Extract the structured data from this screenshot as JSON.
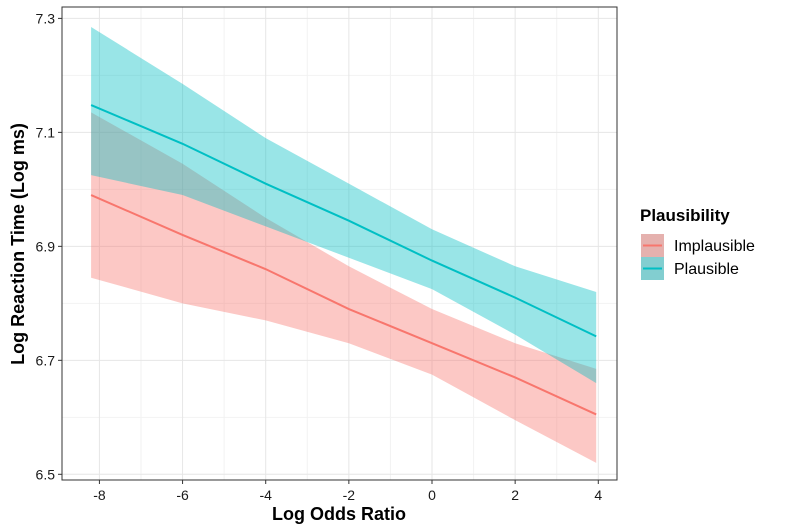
{
  "chart_data": {
    "type": "line",
    "title": "",
    "xlabel": "Log Odds Ratio",
    "ylabel": "Log Reaction Time (Log ms)",
    "xlim": [
      -8.9,
      4.45
    ],
    "ylim": [
      6.49,
      7.32
    ],
    "x_ticks": [
      -8,
      -6,
      -4,
      -2,
      0,
      2,
      4
    ],
    "x_tick_labels": [
      "-8",
      "-6",
      "-4",
      "-2",
      "0",
      "2",
      "4"
    ],
    "y_ticks": [
      6.5,
      6.7,
      6.9,
      7.1,
      7.3
    ],
    "y_tick_labels": [
      "6.5",
      "6.7",
      "6.9",
      "7.1",
      "7.3"
    ],
    "grid": true,
    "legend": {
      "title": "Plausibility",
      "position": "right"
    },
    "series": [
      {
        "name": "Implausible",
        "color": "#F8766D",
        "fill": "#F8766D",
        "x": [
          -8.2,
          -6,
          -4,
          -2,
          0,
          2,
          3.95
        ],
        "y": [
          6.99,
          6.92,
          6.86,
          6.79,
          6.73,
          6.67,
          6.605
        ],
        "lower": [
          6.845,
          6.8,
          6.77,
          6.73,
          6.675,
          6.595,
          6.52
        ],
        "upper": [
          7.135,
          7.045,
          6.95,
          6.865,
          6.79,
          6.73,
          6.685
        ]
      },
      {
        "name": "Plausible",
        "color": "#00BFC4",
        "fill": "#00BFC4",
        "x": [
          -8.2,
          -6,
          -4,
          -2,
          0,
          2,
          3.95
        ],
        "y": [
          7.148,
          7.08,
          7.01,
          6.945,
          6.875,
          6.81,
          6.742
        ],
        "lower": [
          7.025,
          6.99,
          6.935,
          6.88,
          6.825,
          6.745,
          6.66
        ],
        "upper": [
          7.285,
          7.185,
          7.09,
          7.01,
          6.93,
          6.865,
          6.82
        ]
      }
    ]
  }
}
